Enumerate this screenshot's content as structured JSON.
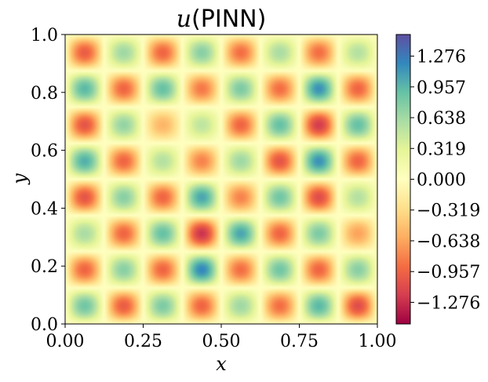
{
  "chart_data": {
    "type": "heatmap",
    "title": "u(PINN)",
    "title_var": "u",
    "title_suffix": "(PINN)",
    "xlabel": "x",
    "ylabel": "y",
    "xlim": [
      0.0,
      1.0
    ],
    "ylim": [
      0.0,
      1.0
    ],
    "xticks": [
      {
        "value": 0.0,
        "label": "0.00"
      },
      {
        "value": 0.25,
        "label": "0.25"
      },
      {
        "value": 0.5,
        "label": "0.50"
      },
      {
        "value": 0.75,
        "label": "0.75"
      },
      {
        "value": 1.0,
        "label": "1.00"
      }
    ],
    "yticks": [
      {
        "value": 0.0,
        "label": "0.0"
      },
      {
        "value": 0.2,
        "label": "0.2"
      },
      {
        "value": 0.4,
        "label": "0.4"
      },
      {
        "value": 0.6,
        "label": "0.6"
      },
      {
        "value": 0.8,
        "label": "0.8"
      },
      {
        "value": 1.0,
        "label": "1.0"
      }
    ],
    "field": {
      "description_expr": "approx sin(8*pi*x)*sin(8*pi*y) with small distortions",
      "grid_peaks": [
        [
          -1.0,
          0.65,
          -0.95,
          0.75,
          -0.9,
          0.6,
          -0.9,
          0.55
        ],
        [
          0.95,
          -0.95,
          0.9,
          -0.85,
          0.8,
          -0.9,
          1.15,
          -0.95
        ],
        [
          -1.05,
          0.7,
          -0.55,
          0.5,
          -0.95,
          0.9,
          -1.2,
          0.9
        ],
        [
          1.0,
          -0.95,
          0.55,
          -0.8,
          0.65,
          -1.05,
          1.15,
          -0.95
        ],
        [
          -1.05,
          0.75,
          -0.95,
          1.05,
          -0.8,
          0.85,
          -1.1,
          0.55
        ],
        [
          0.6,
          -0.95,
          0.9,
          -1.25,
          1.05,
          -0.95,
          0.8,
          -0.65
        ],
        [
          -0.95,
          0.75,
          -0.95,
          1.2,
          -0.9,
          0.85,
          -0.95,
          0.75
        ],
        [
          0.85,
          -1.0,
          0.8,
          -0.95,
          0.65,
          -0.9,
          0.95,
          -1.1
        ]
      ]
    },
    "colorbar": {
      "colormap": "Spectral",
      "vmin": -1.5,
      "vmax": 1.5,
      "ticks": [
        {
          "value": 1.276,
          "label": "1.276"
        },
        {
          "value": 0.957,
          "label": "0.957"
        },
        {
          "value": 0.638,
          "label": "0.638"
        },
        {
          "value": 0.319,
          "label": "0.319"
        },
        {
          "value": 0.0,
          "label": "0.000"
        },
        {
          "value": -0.319,
          "label": "−0.319"
        },
        {
          "value": -0.638,
          "label": "−0.638"
        },
        {
          "value": -0.957,
          "label": "−0.957"
        },
        {
          "value": -1.276,
          "label": "−1.276"
        }
      ],
      "colors": [
        "#9e0142",
        "#d53e4f",
        "#f46d43",
        "#fdae61",
        "#fee08b",
        "#ffffbf",
        "#e6f598",
        "#abdda4",
        "#66c2a5",
        "#3288bd",
        "#5e4fa2"
      ]
    }
  }
}
